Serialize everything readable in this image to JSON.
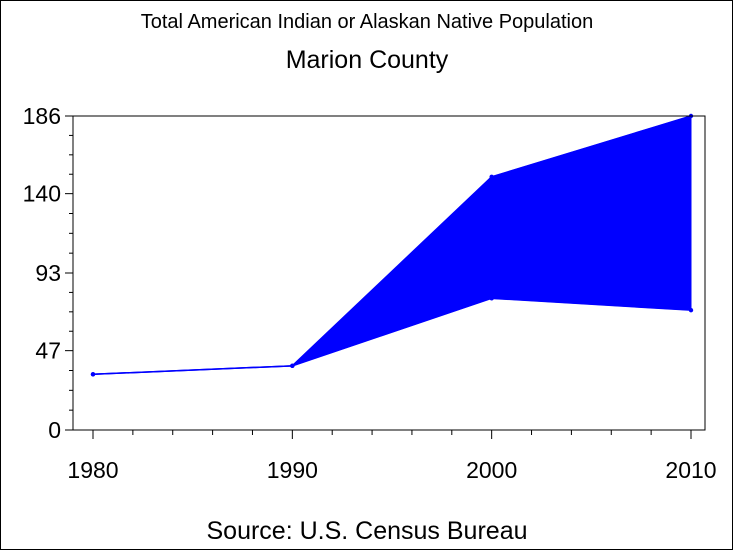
{
  "chart_data": {
    "type": "area",
    "title": "Total American Indian or Alaskan Native Population",
    "subtitle": "Marion County",
    "source": "Source: U.S. Census Bureau",
    "xlabel": "",
    "ylabel": "",
    "x": [
      1980,
      1990,
      2000,
      2010
    ],
    "x_ticks": [
      "1980",
      "1990",
      "2000",
      "2010"
    ],
    "y_ticks": [
      "0",
      "47",
      "93",
      "140",
      "186"
    ],
    "ylim": [
      0,
      186
    ],
    "xlim": [
      1980,
      2010
    ],
    "grid": false,
    "series": [
      {
        "values": [
          33,
          38,
          150,
          186
        ],
        "color": "#0000ff"
      },
      {
        "values": [
          33,
          38,
          78,
          71
        ],
        "color": "#0000ff"
      }
    ],
    "fill_between": true,
    "fill_color": "#0000ff"
  }
}
